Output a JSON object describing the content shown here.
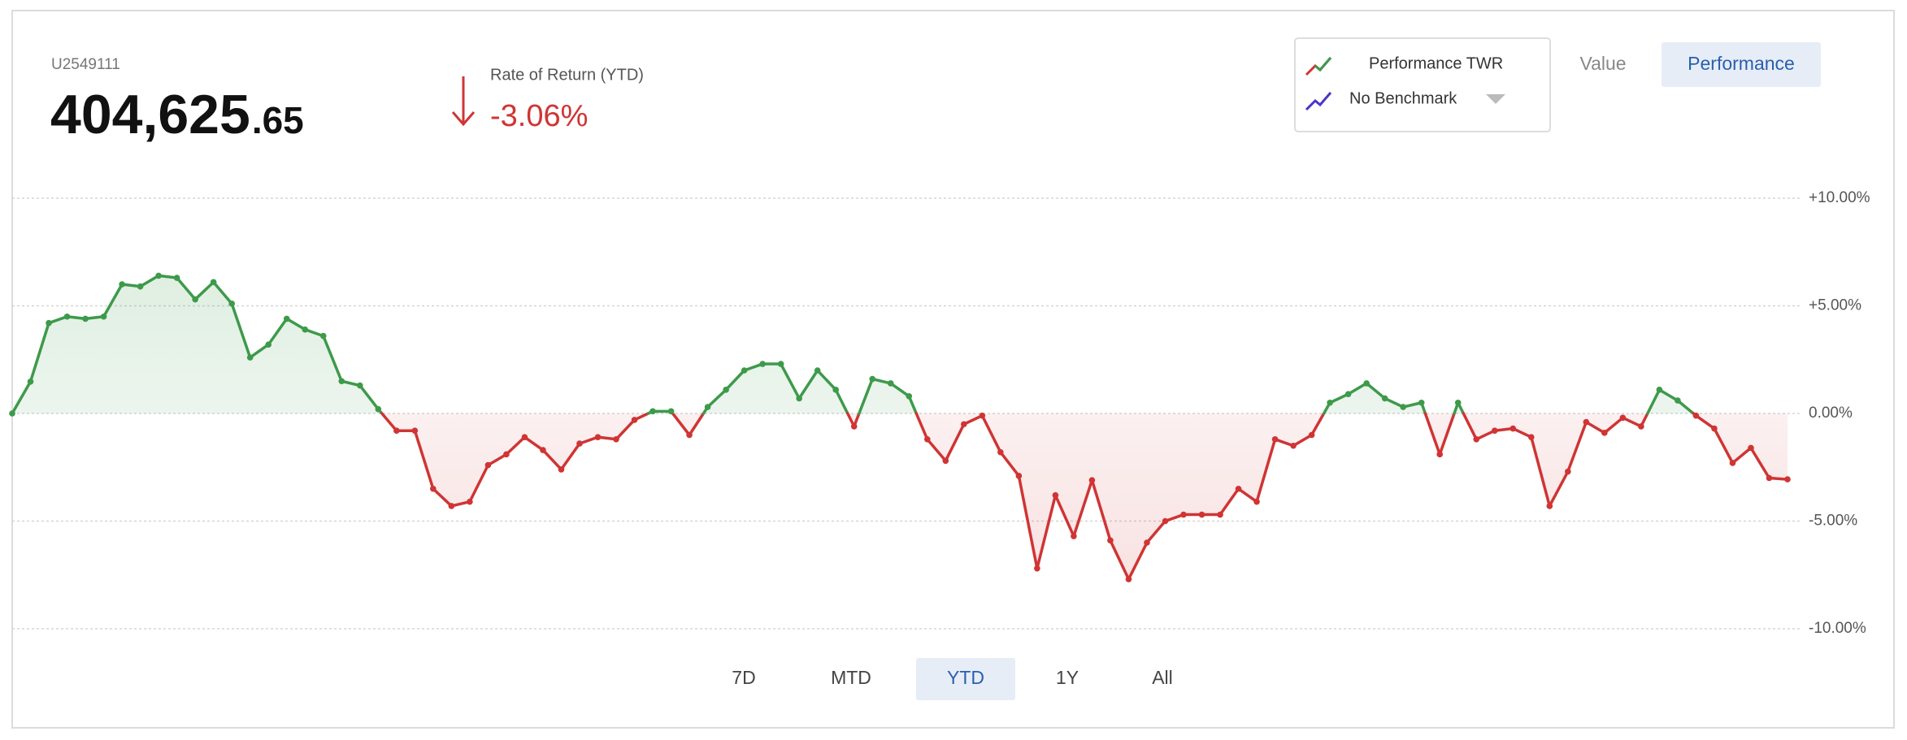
{
  "header": {
    "account": "U2549111",
    "value_main": "404,625",
    "value_cents": ".65",
    "return_label": "Rate of Return (YTD)",
    "return_value": "-3.06%"
  },
  "legend": {
    "benchmark": "No Benchmark"
  },
  "view_buttons": [
    "Value",
    "Performance"
  ],
  "range_buttons": [
    "7D",
    "MTD",
    "YTD",
    "1Y",
    "All"
  ],
  "chart_data": {
    "type": "line",
    "series": [
      {
        "name": "Performance TWR",
        "color": "#3d9a4a",
        "negative_color": "#d03434",
        "values": [
          0,
          1.48,
          4.2,
          4.5,
          4.4,
          4.5,
          6.0,
          5.9,
          6.4,
          6.3,
          5.3,
          6.1,
          5.1,
          2.6,
          3.2,
          4.4,
          3.9,
          3.6,
          1.5,
          1.3,
          0.2,
          -0.8,
          -0.8,
          -3.5,
          -4.3,
          -4.1,
          -2.4,
          -1.9,
          -1.1,
          -1.7,
          -2.6,
          -1.4,
          -1.1,
          -1.2,
          -0.3,
          0.1,
          0.1,
          -1.0,
          0.3,
          1.1,
          2.0,
          2.3,
          2.3,
          0.7,
          2.0,
          1.1,
          -0.6,
          1.6,
          1.4,
          0.8,
          -1.2,
          -2.2,
          -0.5,
          -0.1,
          -1.8,
          -2.9,
          -7.2,
          -3.8,
          -5.7,
          -3.1,
          -5.9,
          -7.7,
          -6.0,
          -5.0,
          -4.7,
          -4.7,
          -4.7,
          -3.5,
          -4.1,
          -1.2,
          -1.5,
          -1.0,
          0.5,
          0.9,
          1.4,
          0.7,
          0.3,
          0.5,
          -1.9,
          0.5,
          -1.2,
          -0.8,
          -0.7,
          -1.1,
          -4.3,
          -2.7,
          -0.4,
          -0.9,
          -0.2,
          -0.6,
          1.1,
          0.6,
          -0.1,
          -0.7,
          -2.3,
          -1.6,
          -3.0,
          -3.06
        ]
      }
    ],
    "ylim": [
      -10,
      10
    ],
    "yticks": [
      {
        "value": 10,
        "label": "+10.00%"
      },
      {
        "value": 5,
        "label": "+5.00%"
      },
      {
        "value": 0,
        "label": "0.00%"
      },
      {
        "value": -5,
        "label": "-5.00%"
      },
      {
        "value": -10,
        "label": "-10.00%"
      }
    ],
    "grid": true
  }
}
